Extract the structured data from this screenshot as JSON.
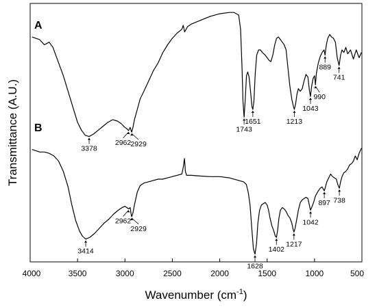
{
  "chart_data": {
    "type": "line",
    "xlabel": "Wavenumber (cm",
    "xlabel_sup": "-1",
    "xlabel_close": ")",
    "ylabel": "Transmittance (A.U.)",
    "xlim": [
      4000,
      500
    ],
    "xaxis_reversed": true,
    "ylim": [
      0,
      100
    ],
    "x_ticks": [
      4000,
      3500,
      3000,
      2500,
      2000,
      1500,
      1000,
      500
    ],
    "grid": false,
    "y_tick_labels": false,
    "series": [
      {
        "name": "A",
        "points": [
          [
            3980,
            87
          ],
          [
            3900,
            86
          ],
          [
            3850,
            84
          ],
          [
            3800,
            85
          ],
          [
            3760,
            83
          ],
          [
            3700,
            77
          ],
          [
            3650,
            72
          ],
          [
            3600,
            66
          ],
          [
            3550,
            60
          ],
          [
            3500,
            54
          ],
          [
            3460,
            51
          ],
          [
            3420,
            49
          ],
          [
            3378,
            48.5
          ],
          [
            3330,
            49.5
          ],
          [
            3280,
            51
          ],
          [
            3230,
            52.5
          ],
          [
            3180,
            54
          ],
          [
            3130,
            55
          ],
          [
            3080,
            54.5
          ],
          [
            3040,
            53.5
          ],
          [
            3000,
            52
          ],
          [
            2980,
            51.5
          ],
          [
            2962,
            50.8
          ],
          [
            2945,
            52
          ],
          [
            2935,
            50.8
          ],
          [
            2929,
            50.2
          ],
          [
            2915,
            52
          ],
          [
            2900,
            55
          ],
          [
            2870,
            59
          ],
          [
            2840,
            63
          ],
          [
            2800,
            66
          ],
          [
            2750,
            70
          ],
          [
            2700,
            74
          ],
          [
            2650,
            77
          ],
          [
            2600,
            81
          ],
          [
            2550,
            84
          ],
          [
            2500,
            86.5
          ],
          [
            2450,
            88.5
          ],
          [
            2400,
            90
          ],
          [
            2385,
            91.5
          ],
          [
            2370,
            89
          ],
          [
            2355,
            90
          ],
          [
            2340,
            91
          ],
          [
            2300,
            92
          ],
          [
            2200,
            93.5
          ],
          [
            2100,
            95
          ],
          [
            2000,
            96
          ],
          [
            1900,
            96.5
          ],
          [
            1850,
            96.5
          ],
          [
            1800,
            95.5
          ],
          [
            1780,
            90
          ],
          [
            1765,
            75
          ],
          [
            1755,
            62
          ],
          [
            1743,
            56
          ],
          [
            1732,
            62
          ],
          [
            1718,
            72
          ],
          [
            1705,
            73.5
          ],
          [
            1690,
            71.5
          ],
          [
            1675,
            66
          ],
          [
            1660,
            60
          ],
          [
            1651,
            59
          ],
          [
            1640,
            62
          ],
          [
            1625,
            73
          ],
          [
            1610,
            80
          ],
          [
            1590,
            82
          ],
          [
            1570,
            82
          ],
          [
            1550,
            81
          ],
          [
            1520,
            80
          ],
          [
            1500,
            79
          ],
          [
            1480,
            78
          ],
          [
            1460,
            77.5
          ],
          [
            1440,
            80
          ],
          [
            1420,
            84
          ],
          [
            1400,
            86.5
          ],
          [
            1380,
            87
          ],
          [
            1360,
            86
          ],
          [
            1340,
            85
          ],
          [
            1320,
            84
          ],
          [
            1300,
            82
          ],
          [
            1280,
            75
          ],
          [
            1260,
            68
          ],
          [
            1240,
            63
          ],
          [
            1225,
            60.5
          ],
          [
            1213,
            59
          ],
          [
            1200,
            61
          ],
          [
            1185,
            65
          ],
          [
            1170,
            67
          ],
          [
            1150,
            66
          ],
          [
            1130,
            67
          ],
          [
            1110,
            70
          ],
          [
            1090,
            72.5
          ],
          [
            1070,
            71.5
          ],
          [
            1055,
            66.5
          ],
          [
            1043,
            64
          ],
          [
            1030,
            68
          ],
          [
            1015,
            71
          ],
          [
            1000,
            72
          ],
          [
            990,
            68.5
          ],
          [
            980,
            73
          ],
          [
            960,
            77
          ],
          [
            940,
            79.5
          ],
          [
            920,
            81
          ],
          [
            900,
            82
          ],
          [
            889,
            80
          ],
          [
            875,
            84
          ],
          [
            860,
            86.5
          ],
          [
            840,
            88
          ],
          [
            820,
            87
          ],
          [
            800,
            86.5
          ],
          [
            780,
            85
          ],
          [
            760,
            79
          ],
          [
            741,
            76
          ],
          [
            725,
            80
          ],
          [
            710,
            82
          ],
          [
            690,
            81
          ],
          [
            670,
            83
          ],
          [
            650,
            80.5
          ],
          [
            620,
            82
          ],
          [
            590,
            78.5
          ],
          [
            560,
            82
          ],
          [
            530,
            79
          ],
          [
            505,
            81
          ]
        ]
      },
      {
        "name": "B",
        "points": [
          [
            3980,
            43.5
          ],
          [
            3900,
            42.5
          ],
          [
            3850,
            42.5
          ],
          [
            3800,
            42
          ],
          [
            3750,
            41
          ],
          [
            3700,
            39
          ],
          [
            3650,
            35
          ],
          [
            3600,
            29
          ],
          [
            3560,
            22
          ],
          [
            3520,
            16
          ],
          [
            3480,
            12
          ],
          [
            3450,
            10
          ],
          [
            3414,
            8.8
          ],
          [
            3370,
            9.5
          ],
          [
            3320,
            11
          ],
          [
            3270,
            13
          ],
          [
            3220,
            15
          ],
          [
            3170,
            16.5
          ],
          [
            3120,
            18.5
          ],
          [
            3070,
            20
          ],
          [
            3030,
            21
          ],
          [
            3000,
            21.5
          ],
          [
            2980,
            21
          ],
          [
            2962,
            20.5
          ],
          [
            2945,
            21
          ],
          [
            2935,
            18.5
          ],
          [
            2929,
            17.5
          ],
          [
            2915,
            19
          ],
          [
            2900,
            22
          ],
          [
            2870,
            27
          ],
          [
            2840,
            29.5
          ],
          [
            2800,
            30.5
          ],
          [
            2750,
            31
          ],
          [
            2700,
            31.5
          ],
          [
            2650,
            32
          ],
          [
            2600,
            32
          ],
          [
            2550,
            32.5
          ],
          [
            2500,
            33
          ],
          [
            2450,
            33.5
          ],
          [
            2400,
            34
          ],
          [
            2385,
            36.5
          ],
          [
            2372,
            40
          ],
          [
            2362,
            35
          ],
          [
            2350,
            33.5
          ],
          [
            2300,
            33.5
          ],
          [
            2200,
            33.2
          ],
          [
            2100,
            33
          ],
          [
            2000,
            33
          ],
          [
            1900,
            32.5
          ],
          [
            1800,
            31.5
          ],
          [
            1750,
            31
          ],
          [
            1720,
            30
          ],
          [
            1700,
            27
          ],
          [
            1680,
            22
          ],
          [
            1660,
            12
          ],
          [
            1645,
            5
          ],
          [
            1628,
            3
          ],
          [
            1612,
            7
          ],
          [
            1598,
            15
          ],
          [
            1580,
            20
          ],
          [
            1560,
            22
          ],
          [
            1540,
            22.5
          ],
          [
            1520,
            23
          ],
          [
            1500,
            22
          ],
          [
            1485,
            20
          ],
          [
            1470,
            17
          ],
          [
            1450,
            14
          ],
          [
            1430,
            12
          ],
          [
            1414,
            10
          ],
          [
            1402,
            9.5
          ],
          [
            1390,
            12
          ],
          [
            1375,
            17
          ],
          [
            1360,
            20
          ],
          [
            1340,
            21
          ],
          [
            1320,
            20.5
          ],
          [
            1300,
            19.5
          ],
          [
            1280,
            18
          ],
          [
            1260,
            17
          ],
          [
            1240,
            15
          ],
          [
            1225,
            12.5
          ],
          [
            1217,
            11.5
          ],
          [
            1205,
            13
          ],
          [
            1190,
            16
          ],
          [
            1170,
            20
          ],
          [
            1150,
            23
          ],
          [
            1130,
            24
          ],
          [
            1110,
            24.5
          ],
          [
            1090,
            25
          ],
          [
            1070,
            24.5
          ],
          [
            1055,
            22
          ],
          [
            1042,
            20
          ],
          [
            1030,
            21
          ],
          [
            1010,
            23
          ],
          [
            990,
            25.5
          ],
          [
            960,
            27.5
          ],
          [
            940,
            28.5
          ],
          [
            920,
            29
          ],
          [
            905,
            28
          ],
          [
            897,
            27.5
          ],
          [
            885,
            29
          ],
          [
            870,
            31
          ],
          [
            850,
            32.5
          ],
          [
            830,
            34
          ],
          [
            810,
            33
          ],
          [
            790,
            32.5
          ],
          [
            770,
            32
          ],
          [
            755,
            30
          ],
          [
            738,
            28.5
          ],
          [
            725,
            31
          ],
          [
            710,
            33
          ],
          [
            690,
            34.5
          ],
          [
            670,
            35
          ],
          [
            650,
            36
          ],
          [
            630,
            37.5
          ],
          [
            610,
            38
          ],
          [
            590,
            39
          ],
          [
            570,
            41
          ],
          [
            550,
            39.5
          ],
          [
            530,
            42
          ],
          [
            505,
            44
          ]
        ]
      }
    ],
    "panel_labels": [
      "A",
      "B"
    ],
    "peak_annotations": [
      {
        "series": "A",
        "label": "3378",
        "x": 3378,
        "y": 48.5
      },
      {
        "series": "A",
        "label": "2962",
        "x": 2962,
        "y": 50.8
      },
      {
        "series": "A",
        "label": "2929",
        "x": 2929,
        "y": 50.2
      },
      {
        "series": "A",
        "label": "1743",
        "x": 1743,
        "y": 56
      },
      {
        "series": "A",
        "label": "1651",
        "x": 1651,
        "y": 59
      },
      {
        "series": "A",
        "label": "1213",
        "x": 1213,
        "y": 59
      },
      {
        "series": "A",
        "label": "1043",
        "x": 1043,
        "y": 64
      },
      {
        "series": "A",
        "label": "990",
        "x": 990,
        "y": 68.5
      },
      {
        "series": "A",
        "label": "889",
        "x": 889,
        "y": 80
      },
      {
        "series": "A",
        "label": "741",
        "x": 741,
        "y": 76
      },
      {
        "series": "B",
        "label": "3414",
        "x": 3414,
        "y": 8.8
      },
      {
        "series": "B",
        "label": "2962",
        "x": 2962,
        "y": 20.5
      },
      {
        "series": "B",
        "label": "2929",
        "x": 2929,
        "y": 17.5
      },
      {
        "series": "B",
        "label": "1628",
        "x": 1628,
        "y": 3
      },
      {
        "series": "B",
        "label": "1402",
        "x": 1402,
        "y": 9.5
      },
      {
        "series": "B",
        "label": "1217",
        "x": 1217,
        "y": 11.5
      },
      {
        "series": "B",
        "label": "1042",
        "x": 1042,
        "y": 20
      },
      {
        "series": "B",
        "label": "897",
        "x": 897,
        "y": 27.5
      },
      {
        "series": "B",
        "label": "738",
        "x": 738,
        "y": 28.5
      }
    ],
    "colors": {
      "line": "#000000",
      "axis": "#000000",
      "background": "#ffffff"
    }
  }
}
